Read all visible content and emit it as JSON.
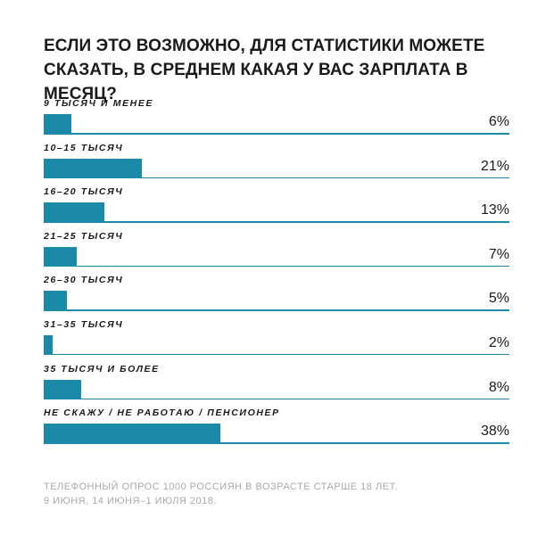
{
  "chart_data": {
    "type": "bar",
    "title": "ЕСЛИ ЭТО ВОЗМОЖНО, ДЛЯ СТАТИСТИКИ МОЖЕТЕ СКАЗАТЬ, В СРЕДНЕМ КАКАЯ У ВАС ЗАРПЛАТА В МЕСЯЦ?",
    "categories": [
      "9 ТЫСЯЧ И МЕНЕЕ",
      "10–15 ТЫСЯЧ",
      "16–20 ТЫСЯЧ",
      "21–25 ТЫСЯЧ",
      "26–30 ТЫСЯЧ",
      "31–35 ТЫСЯЧ",
      "35 ТЫСЯЧ И БОЛЕЕ",
      "НЕ СКАЖУ / НЕ РАБОТАЮ / ПЕНСИОНЕР"
    ],
    "values": [
      6,
      21,
      13,
      7,
      5,
      2,
      8,
      38
    ],
    "value_labels": [
      "6%",
      "21%",
      "13%",
      "7%",
      "5%",
      "2%",
      "8%",
      "38%"
    ],
    "xlim": [
      0,
      100
    ],
    "orientation": "horizontal",
    "bar_color": "#1b8aa8",
    "grid": false,
    "legend": "none"
  },
  "footnote": {
    "line1": "ТЕЛЕФОННЫЙ ОПРОС 1000 РОССИЯН В ВОЗРАСТЕ СТАРШЕ 18 ЛЕТ.",
    "line2": "9 ИЮНЯ, 14 ИЮНЯ–1 ИЮЛЯ 2018."
  }
}
